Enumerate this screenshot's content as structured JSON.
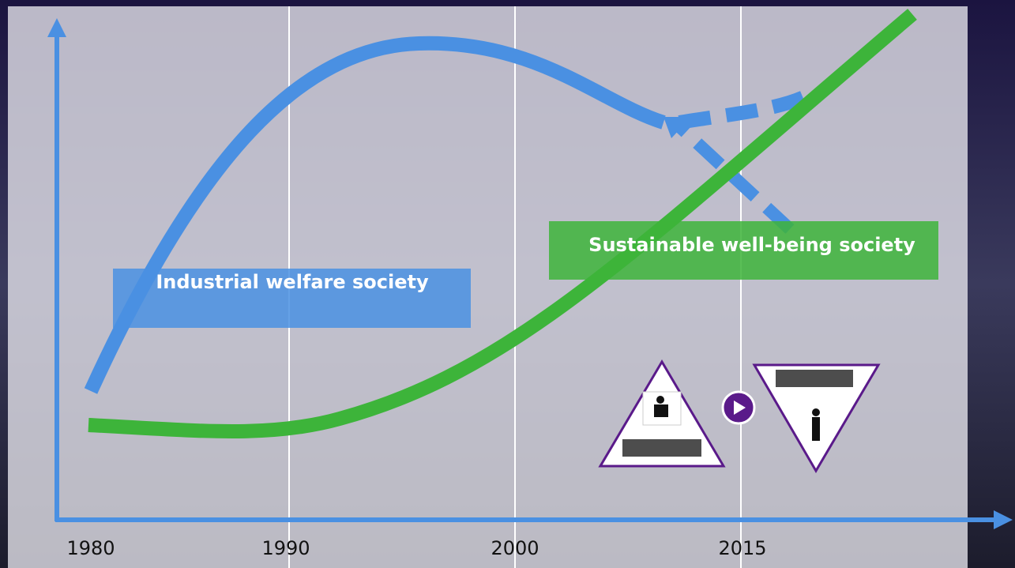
{
  "x_axis": {
    "labels": [
      "1980",
      "1990",
      "2000",
      "2015"
    ]
  },
  "boxes": [
    {
      "label": "Industrial welfare society"
    },
    {
      "label": "Sustainable well-being society"
    }
  ]
}
